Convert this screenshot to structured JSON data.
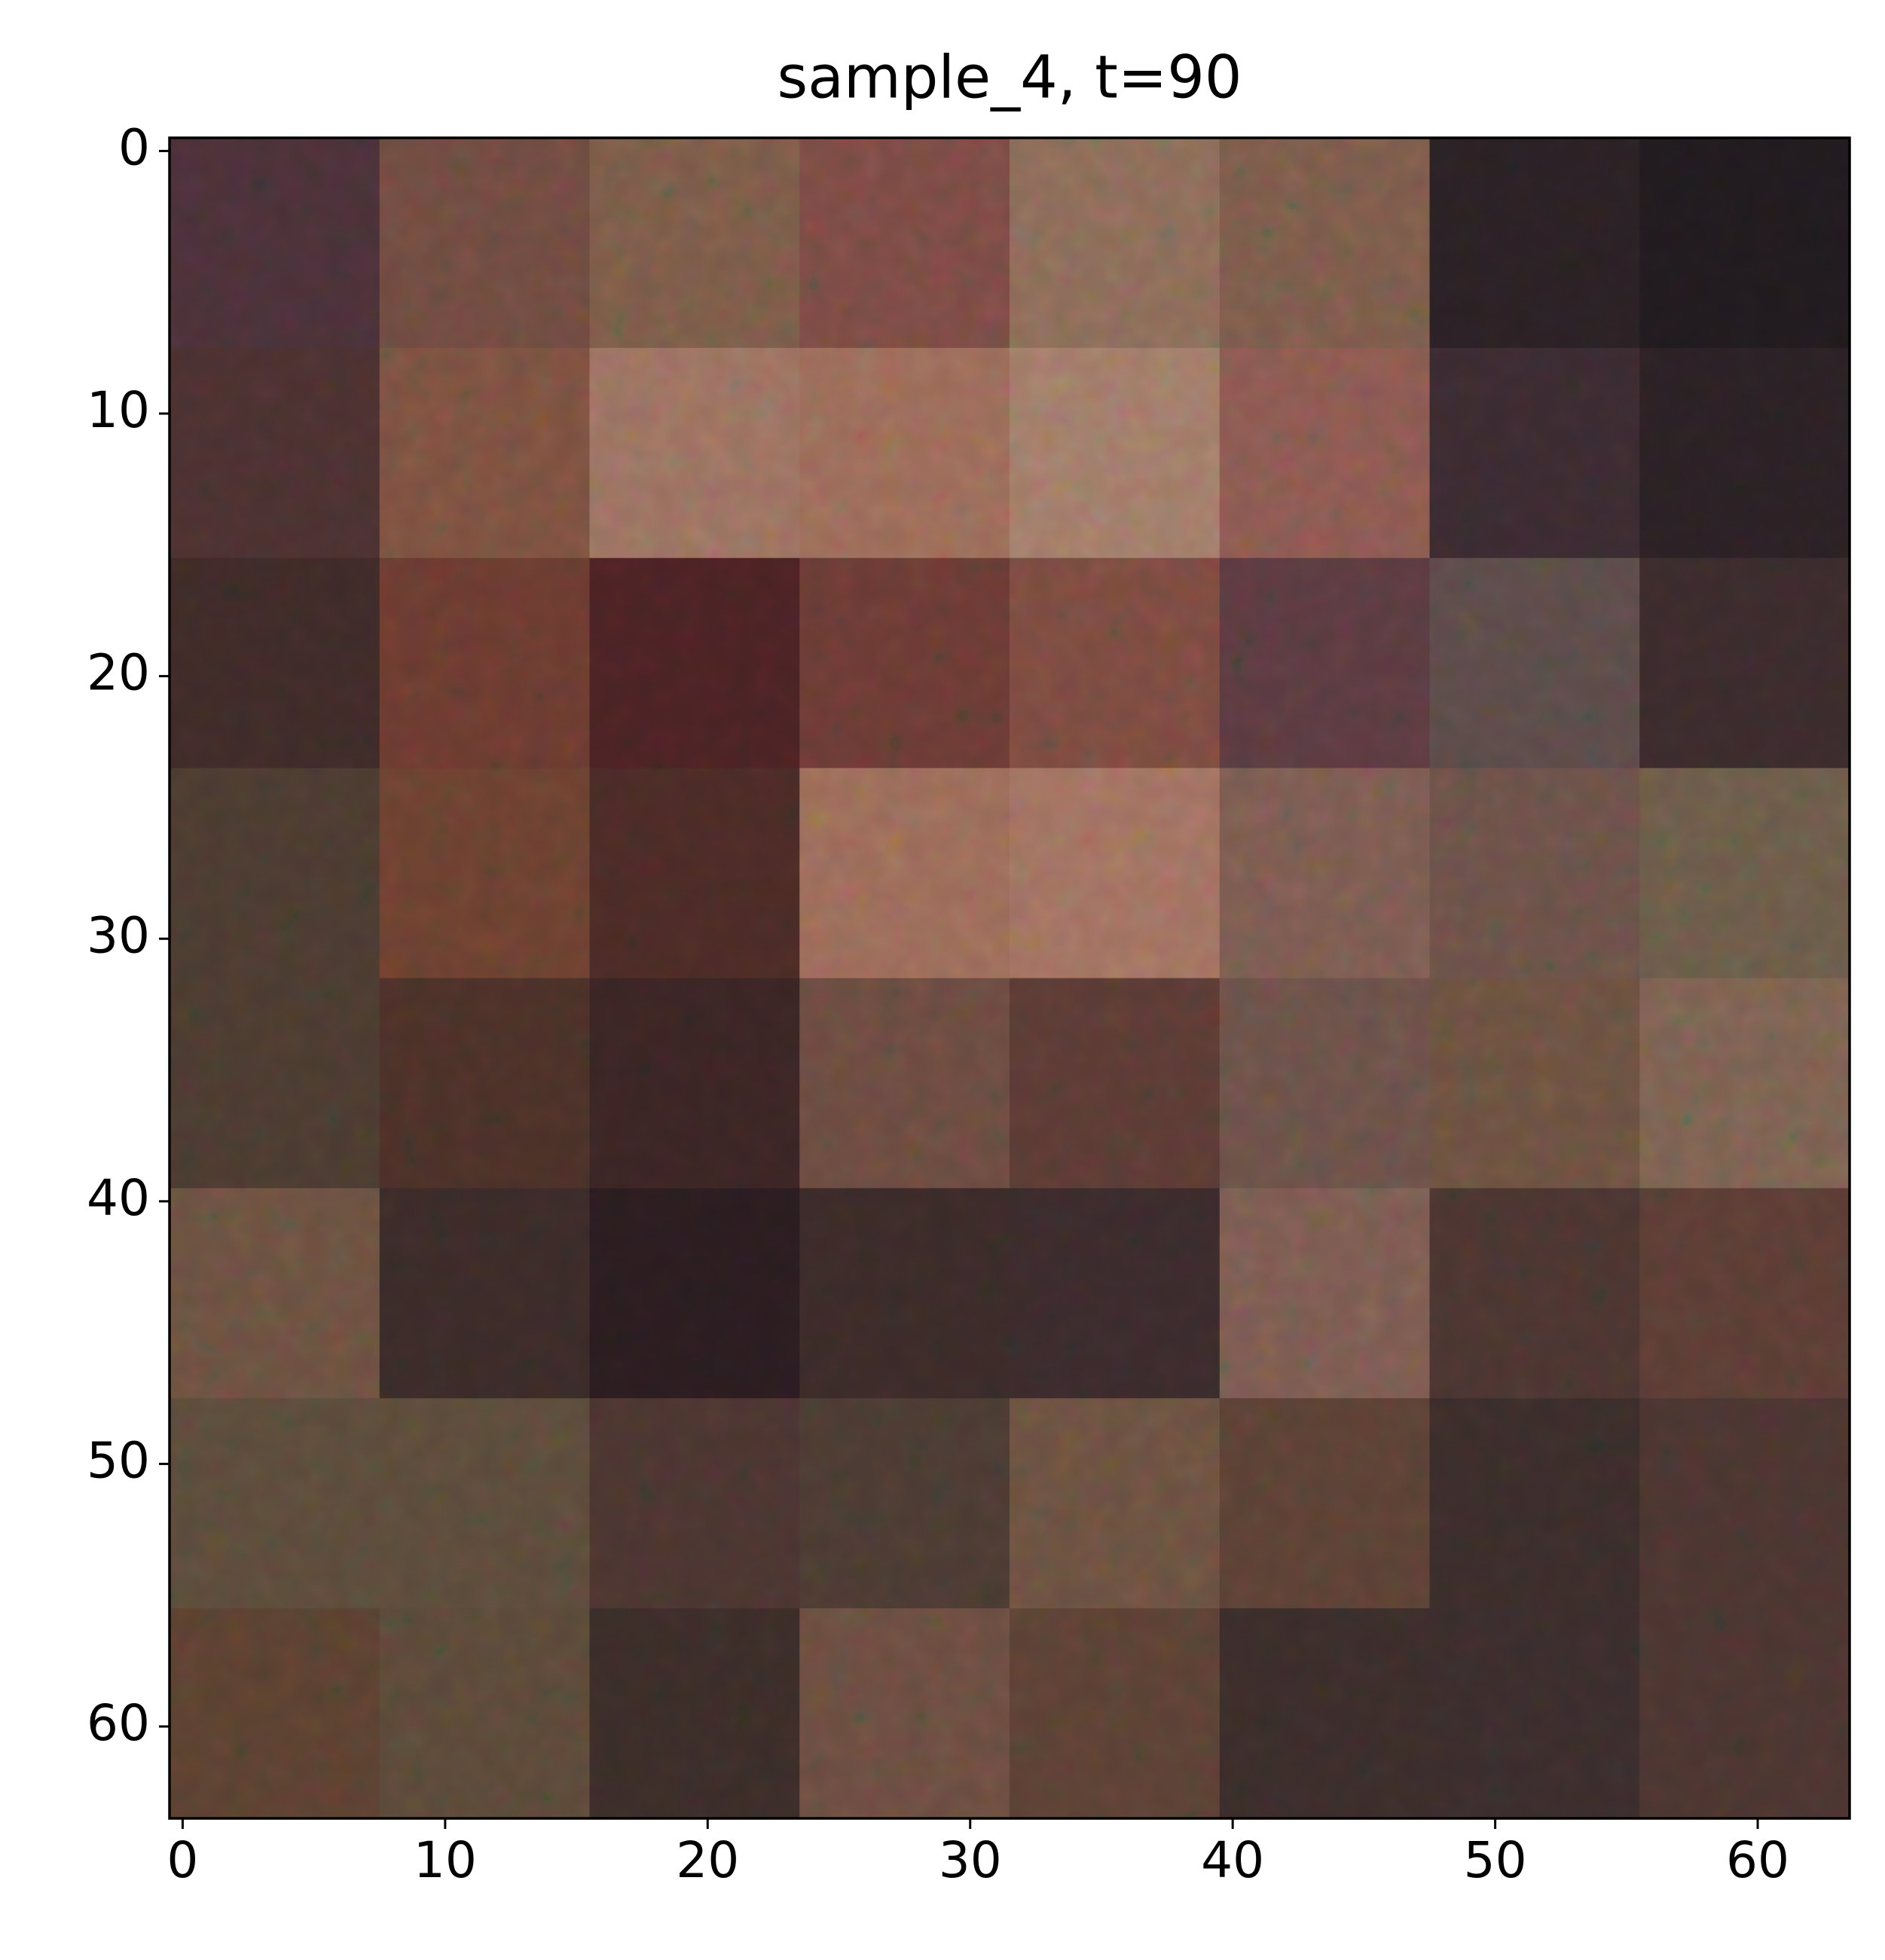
{
  "chart_data": {
    "type": "image",
    "title": "sample_4, t=90",
    "xlim": [
      -0.5,
      63.5
    ],
    "ylim": [
      63.5,
      -0.5
    ],
    "xticks": [
      0,
      10,
      20,
      30,
      40,
      50,
      60
    ],
    "yticks": [
      0,
      10,
      20,
      30,
      40,
      50,
      60
    ],
    "block": 8,
    "pixels": [
      [
        "#4a3038",
        "#6e4a40",
        "#7a5a48",
        "#7a4a44",
        "#8a6a58",
        "#7a5a4a",
        "#2a2024",
        "#201a1e"
      ],
      [
        "#4a3030",
        "#7a5040",
        "#9a7060",
        "#9a6a58",
        "#a07a68",
        "#8a5850",
        "#3a2a30",
        "#2a2024"
      ],
      [
        "#3e2a28",
        "#6a3a30",
        "#4a2224",
        "#6a3a34",
        "#7a4a40",
        "#5a3a40",
        "#5a4a48",
        "#3a2a2c"
      ],
      [
        "#4a3a30",
        "#6a4030",
        "#4a2a26",
        "#9a6a58",
        "#a07060",
        "#7a5a50",
        "#6a5048",
        "#6a5a48"
      ],
      [
        "#4a3a30",
        "#4a3028",
        "#3a2424",
        "#6a4a40",
        "#5a3a34",
        "#6a5048",
        "#6a5040",
        "#7a6050"
      ],
      [
        "#6a5040",
        "#3a2a28",
        "#2a1c20",
        "#3a2a28",
        "#3a2a2c",
        "#7a5a50",
        "#4a3430",
        "#5a3c34"
      ],
      [
        "#5a4a3a",
        "#5a4a3a",
        "#4a3430",
        "#4a3a32",
        "#6a5040",
        "#5a4034",
        "#3a2c2a",
        "#4a3430"
      ],
      [
        "#5a4030",
        "#5a4838",
        "#3a2c28",
        "#6a4c40",
        "#5a4034",
        "#3a2c2a",
        "#3a2c2c",
        "#4a3430"
      ]
    ]
  }
}
